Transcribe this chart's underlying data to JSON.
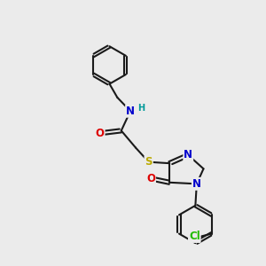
{
  "background_color": "#ebebeb",
  "bond_color": "#1a1a1a",
  "bond_width": 1.5,
  "atom_colors": {
    "N": "#0000cc",
    "O": "#dd0000",
    "S": "#bbaa00",
    "Cl": "#22bb00",
    "H": "#009999",
    "C": "#1a1a1a"
  },
  "font_size_atom": 8.5,
  "font_size_H": 7.0
}
